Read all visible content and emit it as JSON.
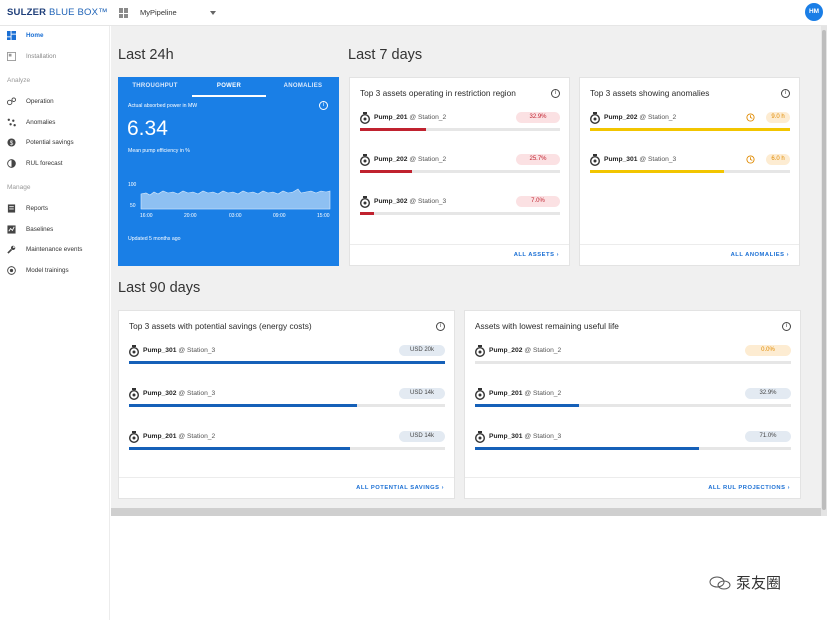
{
  "header": {
    "brand_a": "SULZER",
    "brand_b": "BLUE BOX™",
    "pipeline": "MyPipeline",
    "avatar": "HM"
  },
  "sidebar": {
    "top_items": [
      {
        "label": "Home",
        "icon": "dashboard-icon",
        "active": true
      },
      {
        "label": "Installation",
        "icon": "installation-icon",
        "muted": true
      }
    ],
    "analyze_heading": "Analyze",
    "analyze_items": [
      {
        "label": "Operation",
        "icon": "operation-icon"
      },
      {
        "label": "Anomalies",
        "icon": "anomalies-icon"
      },
      {
        "label": "Potential savings",
        "icon": "savings-icon"
      },
      {
        "label": "RUL forecast",
        "icon": "rul-icon"
      }
    ],
    "manage_heading": "Manage",
    "manage_items": [
      {
        "label": "Reports",
        "icon": "reports-icon"
      },
      {
        "label": "Baselines",
        "icon": "baselines-icon"
      },
      {
        "label": "Maintenance events",
        "icon": "wrench-icon"
      },
      {
        "label": "Model trainings",
        "icon": "model-icon"
      }
    ]
  },
  "sections": {
    "last24": "Last 24h",
    "last7": "Last 7 days",
    "last90": "Last 90 days"
  },
  "power_card": {
    "tabs": [
      "THROUGHPUT",
      "POWER",
      "ANOMALIES"
    ],
    "active_tab": 1,
    "label1": "Actual absorbed power in MW",
    "value": "6.34",
    "label2": "Mean pump efficiency in %",
    "y_ticks": [
      "100",
      "50"
    ],
    "x_ticks": [
      "16:00",
      "20:00",
      "03:00",
      "09:00",
      "15:00"
    ],
    "updated": "Updated 5 months ago"
  },
  "cards": {
    "restriction": {
      "title": "Top 3 assets operating in restriction region",
      "rows": [
        {
          "name": "Pump_201",
          "station": "@ Station_2",
          "value": "32.9%",
          "level": 0.33
        },
        {
          "name": "Pump_202",
          "station": "@ Station_2",
          "value": "25.7%",
          "level": 0.26
        },
        {
          "name": "Pump_302",
          "station": "@ Station_3",
          "value": "7.0%",
          "level": 0.07
        }
      ],
      "link": "ALL ASSETS"
    },
    "anomalies": {
      "title": "Top 3 assets showing anomalies",
      "rows": [
        {
          "name": "Pump_202",
          "station": "@ Station_2",
          "value": "9.0 h",
          "level": 1.0
        },
        {
          "name": "Pump_301",
          "station": "@ Station_3",
          "value": "6.0 h",
          "level": 0.67
        }
      ],
      "link": "ALL ANOMALIES"
    },
    "savings": {
      "title": "Top 3 assets with potential savings (energy costs)",
      "rows": [
        {
          "name": "Pump_301",
          "station": "@ Station_3",
          "value": "USD 20k",
          "level": 1.0
        },
        {
          "name": "Pump_302",
          "station": "@ Station_3",
          "value": "USD 14k",
          "level": 0.72
        },
        {
          "name": "Pump_201",
          "station": "@ Station_2",
          "value": "USD 14k",
          "level": 0.7
        }
      ],
      "link": "ALL POTENTIAL SAVINGS"
    },
    "rul": {
      "title": "Assets with lowest remaining useful life",
      "rows": [
        {
          "name": "Pump_202",
          "station": "@ Station_2",
          "value": "0.0%",
          "level": 0.0
        },
        {
          "name": "Pump_201",
          "station": "@ Station_2",
          "value": "32.9%",
          "level": 0.33
        },
        {
          "name": "Pump_301",
          "station": "@ Station_3",
          "value": "71.0%",
          "level": 0.71
        }
      ],
      "link": "ALL RUL PROJECTIONS"
    }
  },
  "watermark": "泵友圈",
  "colors": {
    "accent": "#1a7fe6",
    "red_bar": "#c0222f",
    "yellow_bar": "#f2c500",
    "blue_bar": "#1560b8",
    "red_badge_bg": "#fbe1e3",
    "orange_badge_bg": "#fdecd2",
    "grey_badge_bg": "#e3eaf2"
  }
}
